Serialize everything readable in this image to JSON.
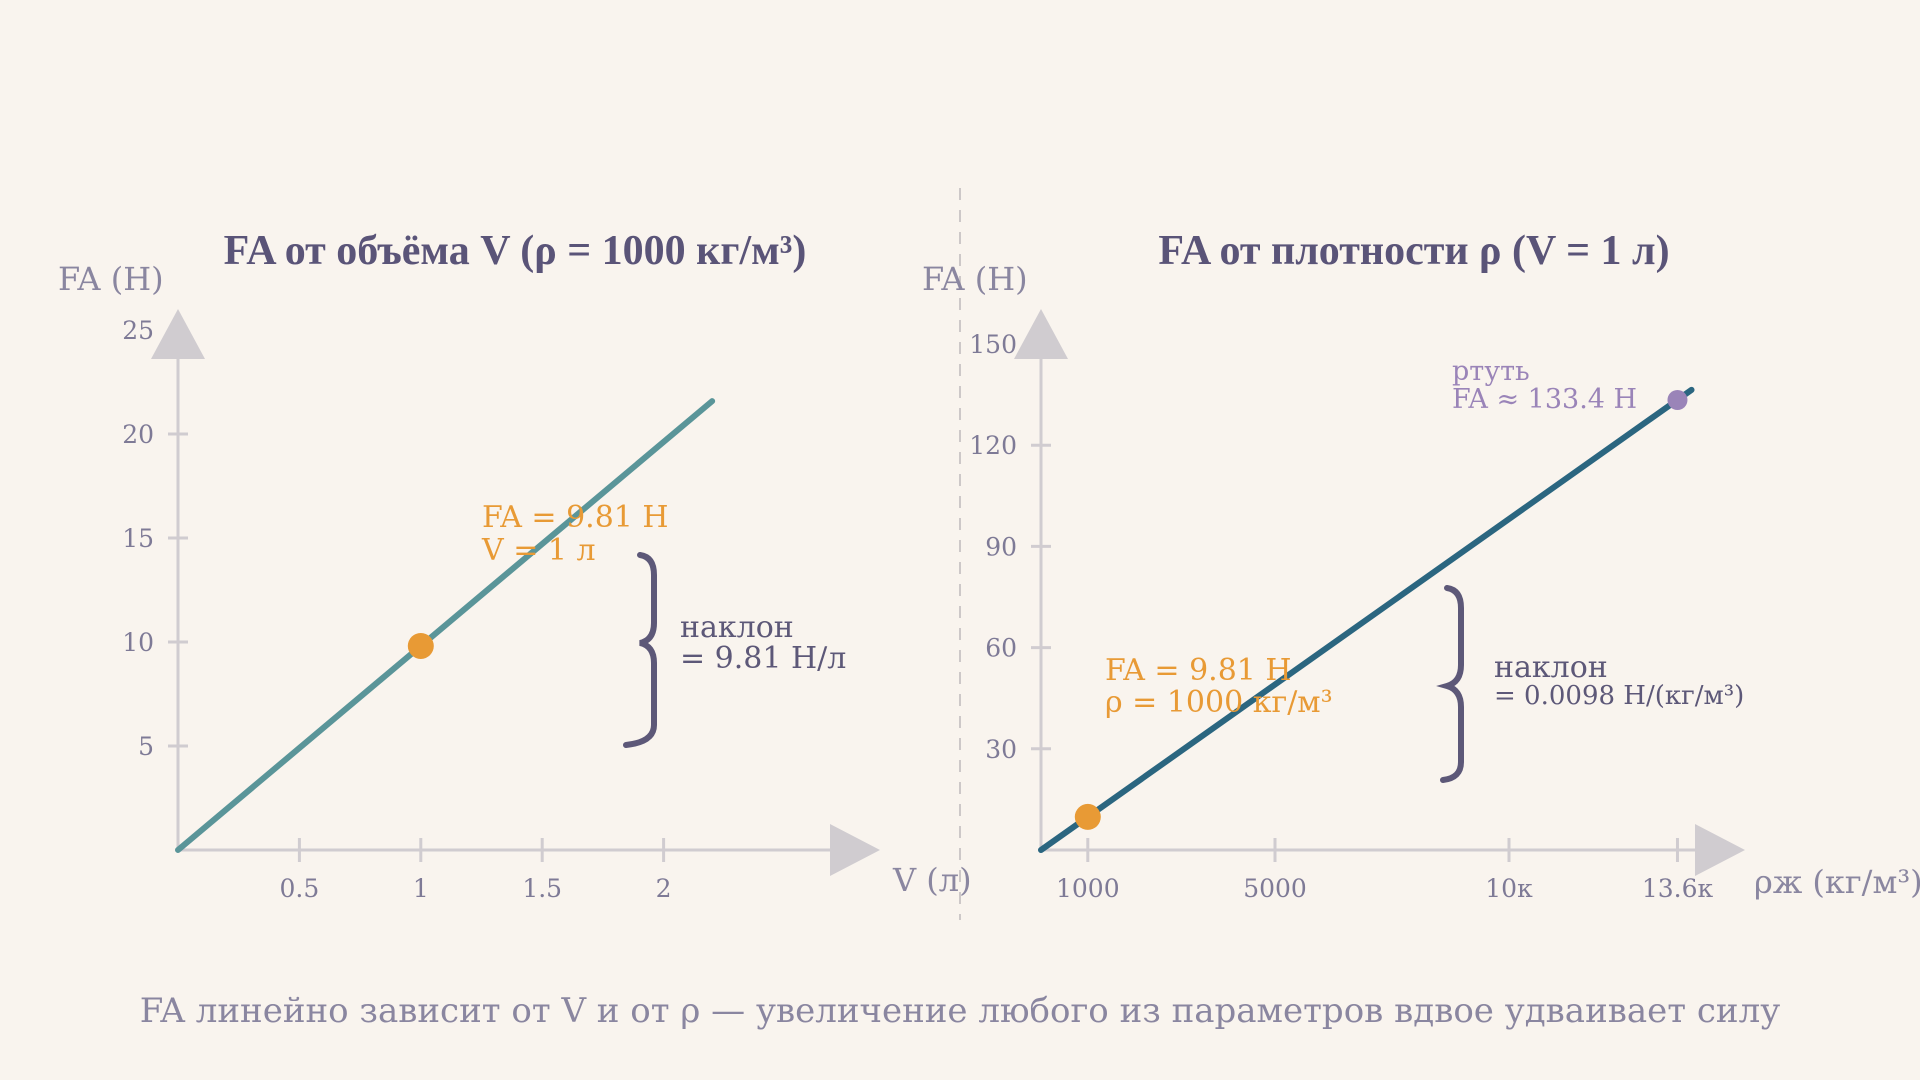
{
  "chart_data": [
    {
      "type": "line",
      "title": "FA от объёма V (ρ = 1000 кг/м³)",
      "ylabel": "FA (Н)",
      "xlabel": "V (л)",
      "xlim": [
        0,
        2.5
      ],
      "ylim": [
        0,
        25
      ],
      "xticks": [
        0.5,
        1,
        1.5,
        2
      ],
      "xtick_labels": [
        "0.5",
        "1",
        "1.5",
        "2"
      ],
      "yticks": [
        5,
        10,
        15,
        20,
        25
      ],
      "ytick_labels": [
        "5",
        "10",
        "15",
        "20",
        "25"
      ],
      "series": [
        {
          "x": [
            0,
            2.2
          ],
          "y": [
            0,
            21.58
          ],
          "color": "#5a9599"
        }
      ],
      "highlight_point": {
        "x": 1,
        "y": 9.81,
        "color": "#e89a35"
      },
      "annotations": {
        "point_line1": "FA = 9.81 Н",
        "point_line2": "V = 1 л",
        "slope_line1": "наклон",
        "slope_line2": "= 9.81 Н/л"
      }
    },
    {
      "type": "line",
      "title": "FA от плотности ρ (V = 1 л)",
      "ylabel": "FA (Н)",
      "xlabel": "ρж (кг/м³)",
      "xlim": [
        0,
        15000
      ],
      "ylim": [
        0,
        150
      ],
      "xticks": [
        1000,
        5000,
        10000,
        13600
      ],
      "xtick_labels": [
        "1000",
        "5000",
        "10к",
        "13.6к"
      ],
      "yticks": [
        30,
        60,
        90,
        120,
        150
      ],
      "ytick_labels": [
        "30",
        "60",
        "90",
        "120",
        "150"
      ],
      "series": [
        {
          "x": [
            0,
            13900
          ],
          "y": [
            0,
            136.4
          ],
          "color": "#2b6680"
        }
      ],
      "highlight_point": {
        "x": 1000,
        "y": 9.81,
        "color": "#e89a35"
      },
      "secondary_point": {
        "x": 13600,
        "y": 133.4,
        "color": "#9a84b8"
      },
      "annotations": {
        "point_line1": "FA = 9.81 Н",
        "point_line2": "ρ = 1000 кг/м³",
        "slope_line1": "наклон",
        "slope_line2": "= 0.0098 Н/(кг/м³)",
        "mercury_line1": "ртуть",
        "mercury_line2": "FA ≈ 133.4 Н"
      }
    }
  ],
  "footer": "FA линейно зависит от V и от ρ — увеличение любого из параметров вдвое удваивает силу",
  "colors": {
    "background": "#f9f4ee",
    "axis": "#d0ccd0",
    "text_dark": "#5a5478",
    "accent_orange": "#e89a35",
    "line_left": "#5a9599",
    "line_right": "#2b6680",
    "mercury": "#9a84b8"
  }
}
